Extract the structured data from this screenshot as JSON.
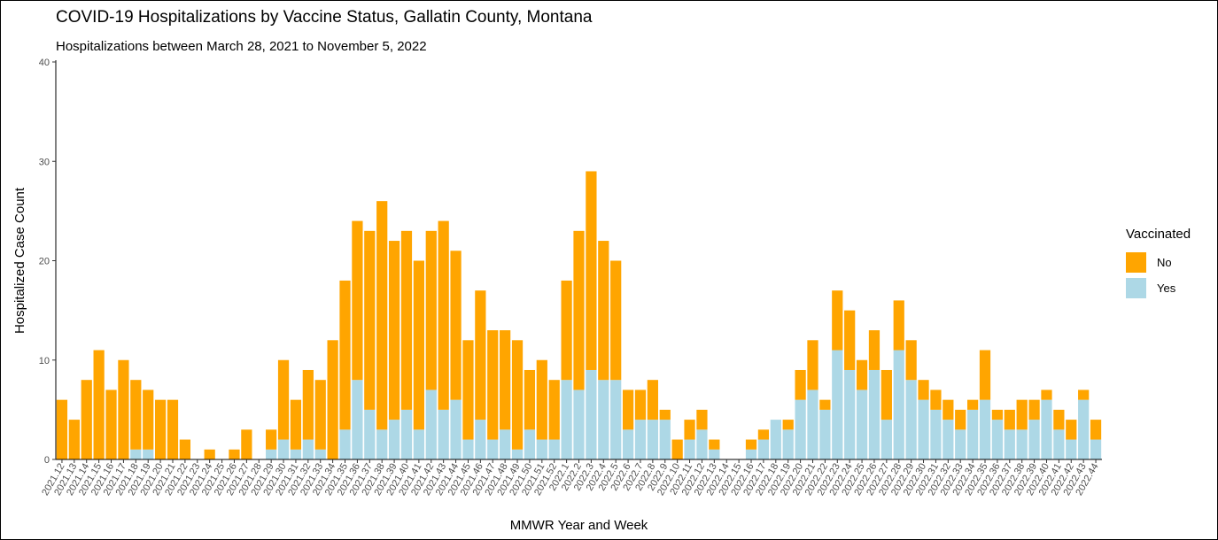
{
  "chart_data": {
    "type": "bar",
    "stacked": true,
    "title": "COVID-19 Hospitalizations by Vaccine Status, Gallatin County, Montana",
    "subtitle": "Hospitalizations between March 28, 2021 to November 5, 2022",
    "xlabel": "MMWR Year and Week",
    "ylabel": "Hospitalized Case Count",
    "ylim": [
      0,
      40
    ],
    "yticks": [
      0,
      10,
      20,
      30,
      40
    ],
    "grid": false,
    "legend": {
      "title": "Vaccinated",
      "position": "right"
    },
    "categories": [
      "2021.12",
      "2021.13",
      "2021.14",
      "2021.15",
      "2021.16",
      "2021.17",
      "2021.18",
      "2021.19",
      "2021.20",
      "2021.21",
      "2021.22",
      "2021.23",
      "2021.24",
      "2021.25",
      "2021.26",
      "2021.27",
      "2021.28",
      "2021.29",
      "2021.30",
      "2021.31",
      "2021.32",
      "2021.33",
      "2021.34",
      "2021.35",
      "2021.36",
      "2021.37",
      "2021.38",
      "2021.39",
      "2021.40",
      "2021.41",
      "2021.42",
      "2021.43",
      "2021.44",
      "2021.45",
      "2021.46",
      "2021.47",
      "2021.48",
      "2021.49",
      "2021.50",
      "2021.51",
      "2021.52",
      "2022.1",
      "2022.2",
      "2022.3",
      "2022.4",
      "2022.5",
      "2022.6",
      "2022.7",
      "2022.8",
      "2022.9",
      "2022.10",
      "2022.11",
      "2022.12",
      "2022.13",
      "2022.14",
      "2022.15",
      "2022.16",
      "2022.17",
      "2022.18",
      "2022.19",
      "2022.20",
      "2022.21",
      "2022.22",
      "2022.23",
      "2022.24",
      "2022.25",
      "2022.26",
      "2022.27",
      "2022.28",
      "2022.29",
      "2022.30",
      "2022.31",
      "2022.32",
      "2022.33",
      "2022.34",
      "2022.35",
      "2022.36",
      "2022.37",
      "2022.38",
      "2022.39",
      "2022.40",
      "2022.41",
      "2022.42",
      "2022.43",
      "2022.44"
    ],
    "series": [
      {
        "name": "No",
        "color": "#FFA500",
        "values": [
          6,
          4,
          8,
          11,
          7,
          10,
          7,
          6,
          6,
          6,
          2,
          0,
          1,
          0,
          1,
          3,
          0,
          2,
          8,
          5,
          7,
          7,
          12,
          15,
          16,
          18,
          23,
          18,
          18,
          17,
          16,
          19,
          15,
          10,
          13,
          11,
          10,
          11,
          6,
          8,
          6,
          10,
          16,
          20,
          14,
          12,
          4,
          3,
          4,
          1,
          2,
          2,
          2,
          1,
          0,
          0,
          1,
          1,
          0,
          1,
          3,
          5,
          1,
          6,
          6,
          3,
          4,
          5,
          5,
          4,
          2,
          2,
          2,
          2,
          1,
          5,
          1,
          2,
          3,
          2,
          1,
          2,
          2,
          1,
          2
        ]
      },
      {
        "name": "Yes",
        "color": "#ADD8E6",
        "values": [
          0,
          0,
          0,
          0,
          0,
          0,
          1,
          1,
          0,
          0,
          0,
          0,
          0,
          0,
          0,
          0,
          0,
          1,
          2,
          1,
          2,
          1,
          0,
          3,
          8,
          5,
          3,
          4,
          5,
          3,
          7,
          5,
          6,
          2,
          4,
          2,
          3,
          1,
          3,
          2,
          2,
          8,
          7,
          9,
          8,
          8,
          3,
          4,
          4,
          4,
          0,
          2,
          3,
          1,
          0,
          0,
          1,
          2,
          4,
          3,
          6,
          7,
          5,
          11,
          9,
          7,
          9,
          4,
          11,
          8,
          6,
          5,
          4,
          3,
          5,
          6,
          4,
          3,
          3,
          4,
          6,
          3,
          2,
          6,
          2
        ]
      }
    ]
  }
}
